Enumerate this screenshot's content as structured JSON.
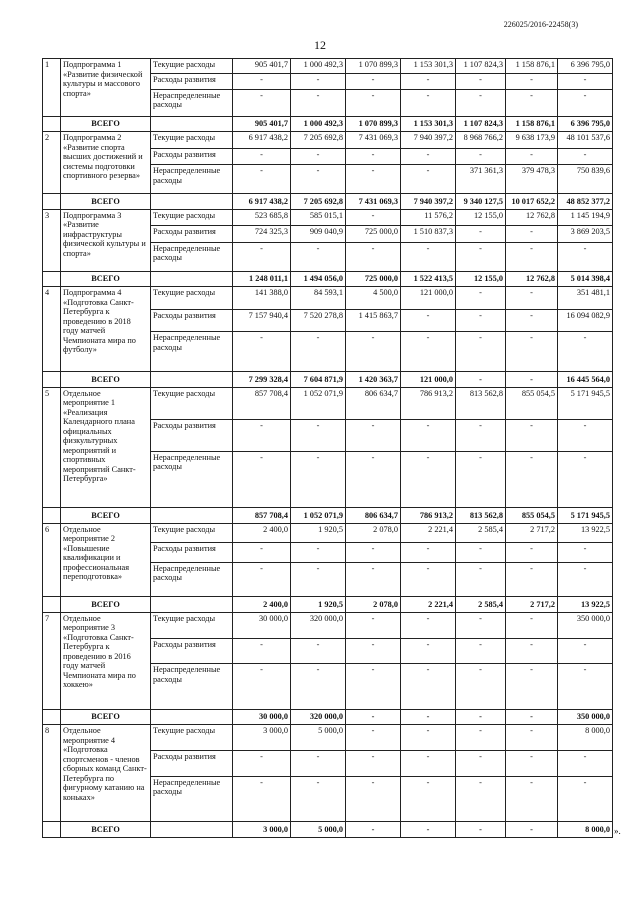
{
  "header": {
    "code": "226025/2016-22458(3)",
    "page": "12"
  },
  "table": {
    "groups": [
      {
        "num": "1",
        "name": "Подпрограмма 1 «Развитие физической культуры и массового спорта»",
        "rows": [
          {
            "label": "Текущие расходы",
            "values": [
              "905 401,7",
              "1 000 492,3",
              "1 070 899,3",
              "1 153 301,3",
              "1 107 824,3",
              "1 158 876,1",
              "6 396 795,0"
            ]
          },
          {
            "label": "Расходы развития",
            "values": [
              "-",
              "-",
              "-",
              "-",
              "-",
              "-",
              "-"
            ]
          },
          {
            "label": "Нераспределенные расходы",
            "values": [
              "-",
              "-",
              "-",
              "-",
              "-",
              "-",
              "-"
            ]
          }
        ],
        "total": {
          "label": "ВСЕГО",
          "values": [
            "905 401,7",
            "1 000 492,3",
            "1 070 899,3",
            "1 153 301,3",
            "1 107 824,3",
            "1 158 876,1",
            "6 396 795,0"
          ]
        }
      },
      {
        "num": "2",
        "name": "Подпрограмма 2 «Развитие спорта высших достижений и системы подготовки спортивного резерва»",
        "rows": [
          {
            "label": "Текущие расходы",
            "values": [
              "6 917 438,2",
              "7 205 692,8",
              "7 431 069,3",
              "7 940 397,2",
              "8 968 766,2",
              "9 638 173,9",
              "48 101 537,6"
            ]
          },
          {
            "label": "Расходы развития",
            "values": [
              "-",
              "-",
              "-",
              "-",
              "-",
              "-",
              "-"
            ]
          },
          {
            "label": "Нераспределенные расходы",
            "values": [
              "-",
              "-",
              "-",
              "-",
              "371 361,3",
              "379 478,3",
              "750 839,6"
            ]
          }
        ],
        "total": {
          "label": "ВСЕГО",
          "values": [
            "6 917 438,2",
            "7 205 692,8",
            "7 431 069,3",
            "7 940 397,2",
            "9 340 127,5",
            "10 017 652,2",
            "48 852 377,2"
          ]
        }
      },
      {
        "num": "3",
        "name": "Подпрограмма 3 «Развитие инфраструктуры физической культуры и спорта»",
        "rows": [
          {
            "label": "Текущие расходы",
            "values": [
              "523 685,8",
              "585 015,1",
              "-",
              "11 576,2",
              "12 155,0",
              "12 762,8",
              "1 145 194,9"
            ]
          },
          {
            "label": "Расходы развития",
            "values": [
              "724 325,3",
              "909 040,9",
              "725 000,0",
              "1 510 837,3",
              "-",
              "-",
              "3 869 203,5"
            ]
          },
          {
            "label": "Нераспределенные расходы",
            "values": [
              "-",
              "-",
              "-",
              "-",
              "-",
              "-",
              "-"
            ]
          }
        ],
        "total": {
          "label": "ВСЕГО",
          "values": [
            "1 248 011,1",
            "1 494 056,0",
            "725 000,0",
            "1 522 413,5",
            "12 155,0",
            "12 762,8",
            "5 014 398,4"
          ]
        }
      },
      {
        "num": "4",
        "name": "Подпрограмма 4 «Подготовка Санкт-Петербурга к проведению в 2018 году матчей Чемпионата мира по футболу»",
        "rows": [
          {
            "label": "Текущие расходы",
            "values": [
              "141 388,0",
              "84 593,1",
              "4 500,0",
              "121 000,0",
              "-",
              "-",
              "351 481,1"
            ]
          },
          {
            "label": "Расходы развития",
            "values": [
              "7 157 940,4",
              "7 520 278,8",
              "1 415 863,7",
              "-",
              "-",
              "-",
              "16 094 082,9"
            ]
          },
          {
            "label": "Нераспределенные расходы",
            "values": [
              "-",
              "-",
              "-",
              "-",
              "-",
              "-",
              "-"
            ]
          }
        ],
        "total": {
          "label": "ВСЕГО",
          "values": [
            "7 299 328,4",
            "7 604 871,9",
            "1 420 363,7",
            "121 000,0",
            "-",
            "-",
            "16 445 564,0"
          ]
        }
      },
      {
        "num": "5",
        "name": "Отдельное мероприятие 1 «Реализация Календарного плана официальных физкультурных мероприятий и спортивных мероприятий Санкт-Петербурга»",
        "rows": [
          {
            "label": "Текущие расходы",
            "values": [
              "857 708,4",
              "1 052 071,9",
              "806 634,7",
              "786 913,2",
              "813 562,8",
              "855 054,5",
              "5 171 945,5"
            ]
          },
          {
            "label": "Расходы развития",
            "values": [
              "-",
              "-",
              "-",
              "-",
              "-",
              "-",
              "-"
            ]
          },
          {
            "label": "Нераспределенные расходы",
            "values": [
              "-",
              "-",
              "-",
              "-",
              "-",
              "-",
              "-"
            ]
          }
        ],
        "total": {
          "label": "ВСЕГО",
          "values": [
            "857 708,4",
            "1 052 071,9",
            "806 634,7",
            "786 913,2",
            "813 562,8",
            "855 054,5",
            "5 171 945,5"
          ]
        }
      },
      {
        "num": "6",
        "name": "Отдельное мероприятие 2 «Повышение квалификации и профессиональная переподготовка»",
        "rows": [
          {
            "label": "Текущие расходы",
            "values": [
              "2 400,0",
              "1 920,5",
              "2 078,0",
              "2 221,4",
              "2 585,4",
              "2 717,2",
              "13 922,5"
            ]
          },
          {
            "label": "Расходы развития",
            "values": [
              "-",
              "-",
              "-",
              "-",
              "-",
              "-",
              "-"
            ]
          },
          {
            "label": "Нераспределенные расходы",
            "values": [
              "-",
              "-",
              "-",
              "-",
              "-",
              "-",
              "-"
            ]
          }
        ],
        "total": {
          "label": "ВСЕГО",
          "values": [
            "2 400,0",
            "1 920,5",
            "2 078,0",
            "2 221,4",
            "2 585,4",
            "2 717,2",
            "13 922,5"
          ]
        }
      },
      {
        "num": "7",
        "name": "Отдельное мероприятие 3 «Подготовка Санкт-Петербурга к проведению в 2016 году матчей Чемпионата мира по хоккею»",
        "rows": [
          {
            "label": "Текущие расходы",
            "values": [
              "30 000,0",
              "320 000,0",
              "-",
              "-",
              "-",
              "-",
              "350 000,0"
            ]
          },
          {
            "label": "Расходы развития",
            "values": [
              "-",
              "-",
              "-",
              "-",
              "-",
              "-",
              "-"
            ]
          },
          {
            "label": "Нераспределенные расходы",
            "values": [
              "-",
              "-",
              "-",
              "-",
              "-",
              "-",
              "-"
            ]
          }
        ],
        "total": {
          "label": "ВСЕГО",
          "values": [
            "30 000,0",
            "320 000,0",
            "-",
            "-",
            "-",
            "-",
            "350 000,0"
          ]
        }
      },
      {
        "num": "8",
        "name": "Отдельное мероприятие 4 «Подготовка спортсменов - членов сборных команд Санкт-Петербурга по фигурному катанию на коньках»",
        "rows": [
          {
            "label": "Текущие расходы",
            "values": [
              "3 000,0",
              "5 000,0",
              "-",
              "-",
              "-",
              "-",
              "8 000,0"
            ]
          },
          {
            "label": "Расходы развития",
            "values": [
              "-",
              "-",
              "-",
              "-",
              "-",
              "-",
              "-"
            ]
          },
          {
            "label": "Нераспределенные расходы",
            "values": [
              "-",
              "-",
              "-",
              "-",
              "-",
              "-",
              "-"
            ]
          }
        ],
        "total": {
          "label": "ВСЕГО",
          "values": [
            "3 000,0",
            "5 000,0",
            "-",
            "-",
            "-",
            "-",
            "8 000,0"
          ]
        }
      }
    ],
    "closing": "»."
  }
}
